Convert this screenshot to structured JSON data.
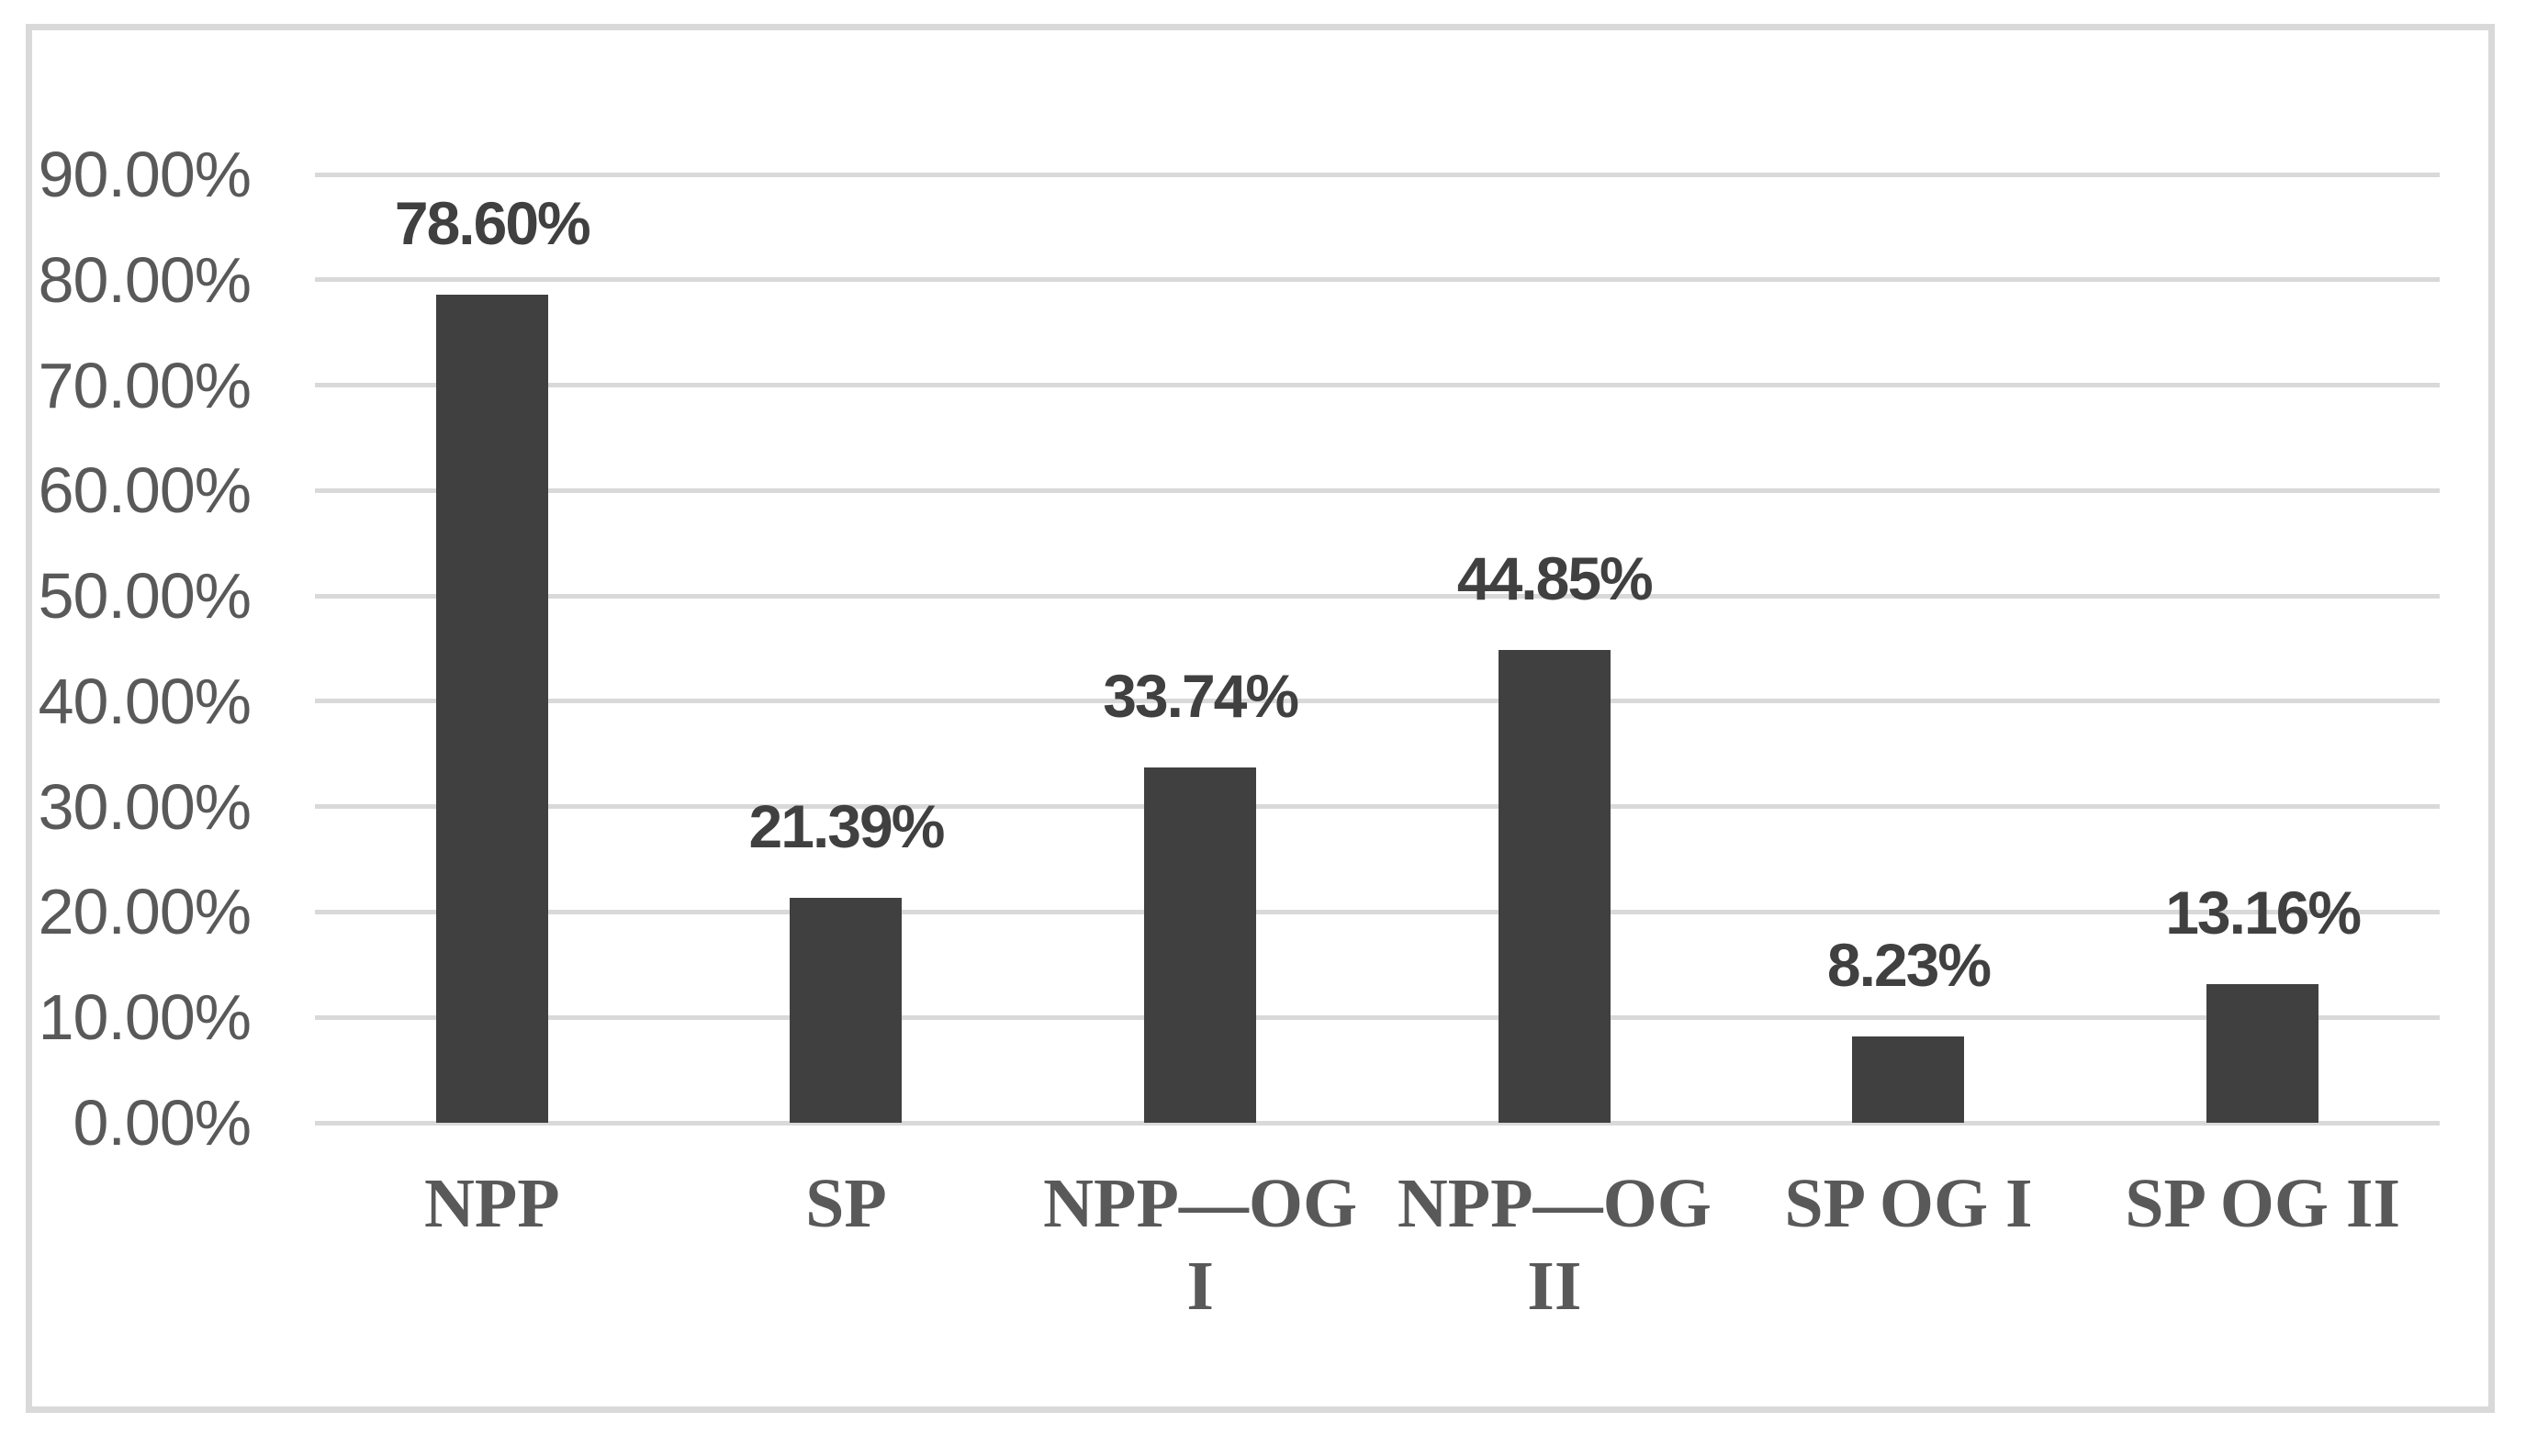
{
  "chart_data": {
    "type": "bar",
    "title": "",
    "categories": [
      "NPP",
      "SP",
      "NPP—OG I",
      "NPP—OG II",
      "SP OG I",
      "SP OG II"
    ],
    "category_display_lines": [
      [
        "NPP"
      ],
      [
        "SP"
      ],
      [
        "NPP—OG",
        "I"
      ],
      [
        "NPP—OG",
        "II"
      ],
      [
        "SP OG I"
      ],
      [
        "SP OG II"
      ]
    ],
    "values": [
      78.6,
      21.39,
      33.74,
      44.85,
      8.23,
      13.16
    ],
    "data_labels": [
      "78.60%",
      "21.39%",
      "33.74%",
      "44.85%",
      "8.23%",
      "13.16%"
    ],
    "xlabel": "",
    "ylabel": "",
    "y_axis": {
      "min": 0,
      "max": 90,
      "step": 10,
      "tick_labels_top_to_bottom": [
        "90.00%",
        "80.00%",
        "70.00%",
        "60.00%",
        "50.00%",
        "40.00%",
        "30.00%",
        "20.00%",
        "10.00%",
        "0.00%"
      ]
    },
    "grid": "horizontal",
    "legend": "none"
  },
  "colors": {
    "bar_fill": "#404040",
    "value_label_text": "#404040",
    "tick_label_text": "#595959",
    "category_label_text": "#595959",
    "gridline": "#d9d9d9",
    "outer_border": "#d9d9d9",
    "background": "#ffffff"
  }
}
